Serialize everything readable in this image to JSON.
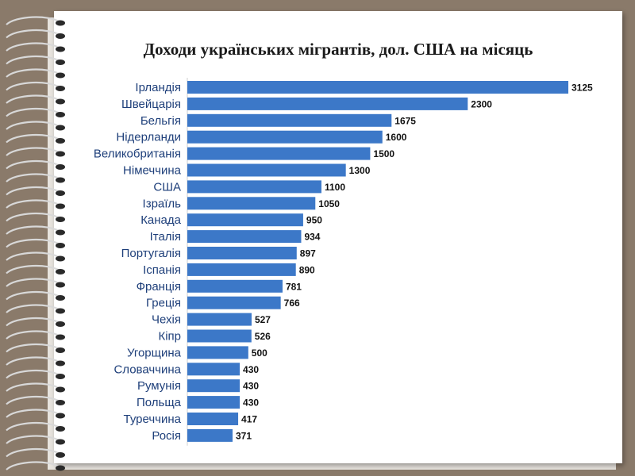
{
  "chart_data": {
    "type": "bar",
    "orientation": "horizontal",
    "title": "Доходи українських мігрантів, дол. США на місяць",
    "categories": [
      "Ірландія",
      "Швейцарія",
      "Бельгія",
      "Нідерланди",
      "Великобританія",
      "Німеччина",
      "США",
      "Ізраїль",
      "Канада",
      "Італія",
      "Португалія",
      "Іспанія",
      "Франція",
      "Греція",
      "Чехія",
      "Кіпр",
      "Угорщина",
      "Словаччина",
      "Румунія",
      "Польща",
      "Туреччина",
      "Росія"
    ],
    "values": [
      3125,
      2300,
      1675,
      1600,
      1500,
      1300,
      1100,
      1050,
      950,
      934,
      897,
      890,
      781,
      766,
      527,
      526,
      500,
      430,
      430,
      430,
      417,
      371
    ],
    "xlim": [
      0,
      3125
    ],
    "bar_color": "#3c78c8",
    "grid": false,
    "legend": "none"
  }
}
